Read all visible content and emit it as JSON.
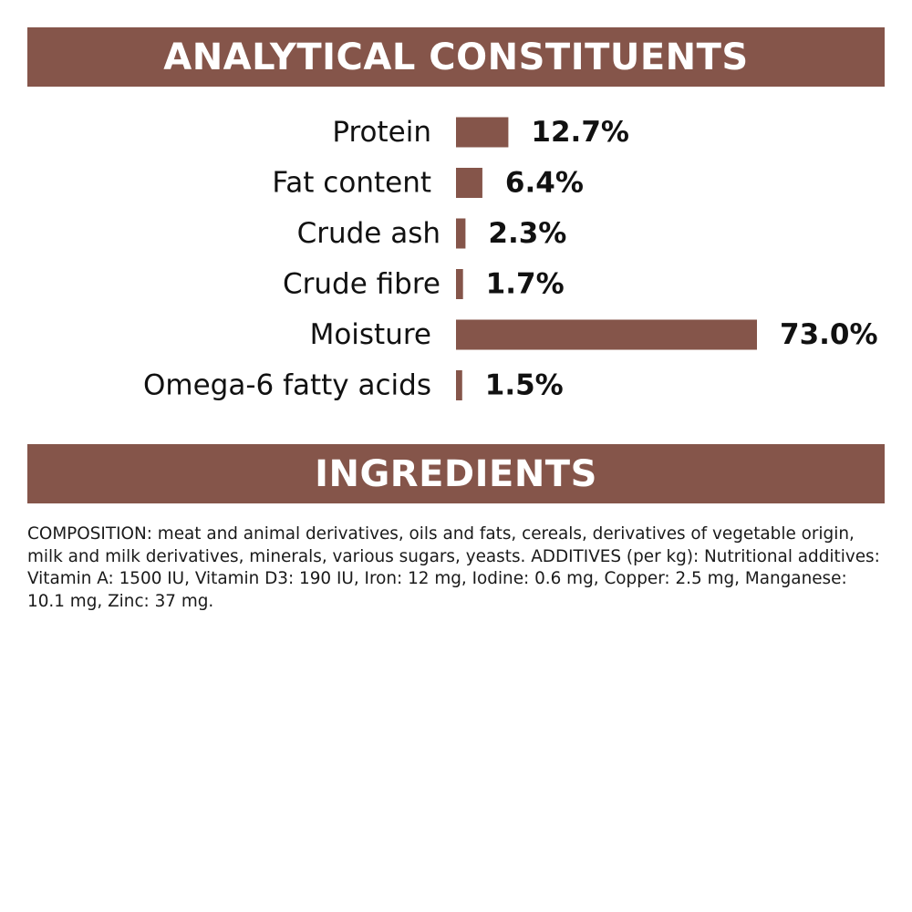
{
  "sections": {
    "analytical_title": "ANALYTICAL CONSTITUENTS",
    "ingredients_title": "INGREDIENTS"
  },
  "colors": {
    "accent": "#85554a",
    "text": "#111111",
    "background": "#ffffff"
  },
  "chart_data": {
    "type": "bar",
    "orientation": "horizontal",
    "categories": [
      "Protein",
      "Fat content",
      "Crude ash",
      "Crude fibre",
      "Moisture",
      "Omega-6 fatty acids"
    ],
    "values": [
      12.7,
      6.4,
      2.3,
      1.7,
      73.0,
      1.5
    ],
    "value_labels": [
      "12.7%",
      "6.4%",
      "2.3%",
      "1.7%",
      "73.0%",
      "1.5%"
    ],
    "unit": "%",
    "grid": false,
    "axes_shown": false,
    "legend": "none",
    "bar_color": "#85554a"
  },
  "ingredients": {
    "composition_text": "COMPOSITION: meat and animal derivatives, oils and fats, cereals, derivatives of vegetable origin, milk and milk derivatives, minerals, various sugars, yeasts. ADDITIVES (per kg): Nutritional additives: Vitamin A: 1500 IU, Vitamin D3: 190 IU, Iron: 12 mg, Iodine: 0.6 mg, Copper: 2.5 mg, Manganese: 10.1 mg, Zinc: 37 mg."
  }
}
